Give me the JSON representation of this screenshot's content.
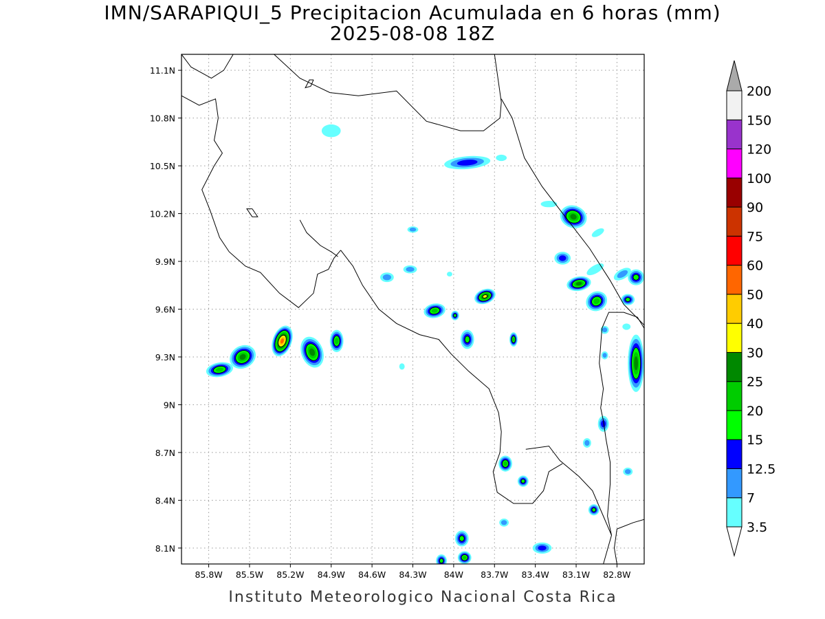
{
  "title": {
    "line1": "IMN/SARAPIQUI_5 Precipitacion Acumulada en 6 horas (mm)",
    "line2": "2025-08-08 18Z"
  },
  "footer": "Instituto Meteorologico Nacional Costa Rica",
  "axes": {
    "lon_range": [
      -86.0,
      -82.6
    ],
    "lat_range": [
      8.0,
      11.2
    ],
    "lon_ticks": [
      {
        "v": -85.8,
        "label": "85.8W"
      },
      {
        "v": -85.5,
        "label": "85.5W"
      },
      {
        "v": -85.2,
        "label": "85.2W"
      },
      {
        "v": -84.9,
        "label": "84.9W"
      },
      {
        "v": -84.6,
        "label": "84.6W"
      },
      {
        "v": -84.3,
        "label": "84.3W"
      },
      {
        "v": -84.0,
        "label": "84W"
      },
      {
        "v": -83.7,
        "label": "83.7W"
      },
      {
        "v": -83.4,
        "label": "83.4W"
      },
      {
        "v": -83.1,
        "label": "83.1W"
      },
      {
        "v": -82.8,
        "label": "82.8W"
      }
    ],
    "lat_ticks": [
      {
        "v": 11.1,
        "label": "11.1N"
      },
      {
        "v": 10.8,
        "label": "10.8N"
      },
      {
        "v": 10.5,
        "label": "10.5N"
      },
      {
        "v": 10.2,
        "label": "10.2N"
      },
      {
        "v": 9.9,
        "label": "9.9N"
      },
      {
        "v": 9.6,
        "label": "9.6N"
      },
      {
        "v": 9.3,
        "label": "9.3N"
      },
      {
        "v": 9.0,
        "label": "9N"
      },
      {
        "v": 8.7,
        "label": "8.7N"
      },
      {
        "v": 8.4,
        "label": "8.4N"
      },
      {
        "v": 8.1,
        "label": "8.1N"
      }
    ],
    "grid": true
  },
  "colorbar": {
    "labels": [
      "3.5",
      "7",
      "12.5",
      "15",
      "20",
      "25",
      "30",
      "40",
      "50",
      "60",
      "75",
      "90",
      "100",
      "120",
      "150",
      "200"
    ],
    "colors": [
      "#66ffff",
      "#3399ff",
      "#0000ff",
      "#00ff00",
      "#00cc00",
      "#008800",
      "#ffff00",
      "#ffcc00",
      "#ff6600",
      "#ff0000",
      "#cc3300",
      "#990000",
      "#ff00ff",
      "#9933cc",
      "#f2f2f2"
    ],
    "over_color": "#aaaaaa",
    "under_color": "#ffffff"
  },
  "precip_cells": [
    {
      "lon": -85.72,
      "lat": 9.22,
      "rx": 0.1,
      "ry": 0.045,
      "level": 4,
      "rot": -10
    },
    {
      "lon": -85.55,
      "lat": 9.3,
      "rx": 0.1,
      "ry": 0.07,
      "level": 5,
      "rot": -30
    },
    {
      "lon": -85.26,
      "lat": 9.4,
      "rx": 0.07,
      "ry": 0.1,
      "level": 8,
      "rot": 20
    },
    {
      "lon": -85.04,
      "lat": 9.33,
      "rx": 0.08,
      "ry": 0.1,
      "level": 5,
      "rot": -20
    },
    {
      "lon": -84.86,
      "lat": 9.4,
      "rx": 0.05,
      "ry": 0.07,
      "level": 4,
      "rot": 0
    },
    {
      "lon": -84.9,
      "lat": 10.72,
      "rx": 0.07,
      "ry": 0.04,
      "level": 0,
      "rot": 0
    },
    {
      "lon": -83.9,
      "lat": 10.52,
      "rx": 0.17,
      "ry": 0.04,
      "level": 2,
      "rot": -5
    },
    {
      "lon": -83.12,
      "lat": 10.18,
      "rx": 0.1,
      "ry": 0.07,
      "level": 5,
      "rot": 20
    },
    {
      "lon": -83.2,
      "lat": 9.92,
      "rx": 0.06,
      "ry": 0.04,
      "level": 2,
      "rot": 0
    },
    {
      "lon": -83.08,
      "lat": 9.76,
      "rx": 0.09,
      "ry": 0.045,
      "level": 5,
      "rot": -10
    },
    {
      "lon": -82.95,
      "lat": 9.65,
      "rx": 0.08,
      "ry": 0.06,
      "level": 4,
      "rot": -30
    },
    {
      "lon": -82.72,
      "lat": 9.66,
      "rx": 0.05,
      "ry": 0.035,
      "level": 3,
      "rot": 0
    },
    {
      "lon": -83.77,
      "lat": 9.68,
      "rx": 0.08,
      "ry": 0.045,
      "level": 6,
      "rot": -20
    },
    {
      "lon": -84.14,
      "lat": 9.59,
      "rx": 0.08,
      "ry": 0.045,
      "level": 4,
      "rot": -10
    },
    {
      "lon": -83.99,
      "lat": 9.56,
      "rx": 0.03,
      "ry": 0.03,
      "level": 3,
      "rot": 0
    },
    {
      "lon": -83.9,
      "lat": 9.41,
      "rx": 0.05,
      "ry": 0.06,
      "level": 3,
      "rot": 0
    },
    {
      "lon": -83.56,
      "lat": 9.41,
      "rx": 0.03,
      "ry": 0.045,
      "level": 4,
      "rot": 0
    },
    {
      "lon": -84.32,
      "lat": 9.85,
      "rx": 0.05,
      "ry": 0.025,
      "level": 1,
      "rot": 0
    },
    {
      "lon": -84.49,
      "lat": 9.8,
      "rx": 0.05,
      "ry": 0.03,
      "level": 1,
      "rot": 0
    },
    {
      "lon": -84.3,
      "lat": 10.1,
      "rx": 0.04,
      "ry": 0.02,
      "level": 1,
      "rot": 0
    },
    {
      "lon": -82.66,
      "lat": 9.26,
      "rx": 0.06,
      "ry": 0.18,
      "level": 5,
      "rot": 0
    },
    {
      "lon": -82.9,
      "lat": 8.88,
      "rx": 0.04,
      "ry": 0.05,
      "level": 2,
      "rot": 0
    },
    {
      "lon": -83.62,
      "lat": 8.63,
      "rx": 0.05,
      "ry": 0.05,
      "level": 4,
      "rot": 0
    },
    {
      "lon": -83.49,
      "lat": 8.52,
      "rx": 0.04,
      "ry": 0.035,
      "level": 3,
      "rot": 0
    },
    {
      "lon": -83.35,
      "lat": 8.1,
      "rx": 0.07,
      "ry": 0.035,
      "level": 2,
      "rot": 0
    },
    {
      "lon": -83.94,
      "lat": 8.16,
      "rx": 0.05,
      "ry": 0.05,
      "level": 3,
      "rot": 0
    },
    {
      "lon": -83.92,
      "lat": 8.04,
      "rx": 0.05,
      "ry": 0.04,
      "level": 4,
      "rot": 0
    },
    {
      "lon": -84.09,
      "lat": 8.02,
      "rx": 0.04,
      "ry": 0.04,
      "level": 3,
      "rot": 0
    },
    {
      "lon": -82.97,
      "lat": 8.34,
      "rx": 0.04,
      "ry": 0.035,
      "level": 3,
      "rot": 0
    },
    {
      "lon": -82.66,
      "lat": 9.8,
      "rx": 0.06,
      "ry": 0.05,
      "level": 3,
      "rot": 0
    },
    {
      "lon": -82.76,
      "lat": 9.82,
      "rx": 0.07,
      "ry": 0.03,
      "level": 1,
      "rot": -30
    },
    {
      "lon": -82.96,
      "lat": 9.85,
      "rx": 0.07,
      "ry": 0.025,
      "level": 0,
      "rot": -30
    },
    {
      "lon": -82.94,
      "lat": 10.08,
      "rx": 0.05,
      "ry": 0.02,
      "level": 0,
      "rot": -30
    },
    {
      "lon": -83.3,
      "lat": 10.26,
      "rx": 0.06,
      "ry": 0.02,
      "level": 0,
      "rot": 0
    },
    {
      "lon": -83.65,
      "lat": 10.55,
      "rx": 0.04,
      "ry": 0.02,
      "level": 0,
      "rot": 0
    },
    {
      "lon": -83.63,
      "lat": 8.26,
      "rx": 0.035,
      "ry": 0.025,
      "level": 1,
      "rot": 0
    },
    {
      "lon": -82.72,
      "lat": 8.58,
      "rx": 0.035,
      "ry": 0.025,
      "level": 1,
      "rot": 0
    },
    {
      "lon": -83.02,
      "lat": 8.76,
      "rx": 0.03,
      "ry": 0.03,
      "level": 1,
      "rot": 0
    },
    {
      "lon": -82.89,
      "lat": 9.47,
      "rx": 0.03,
      "ry": 0.025,
      "level": 1,
      "rot": 0
    },
    {
      "lon": -82.89,
      "lat": 9.31,
      "rx": 0.025,
      "ry": 0.025,
      "level": 1,
      "rot": 0
    },
    {
      "lon": -84.38,
      "lat": 9.24,
      "rx": 0.02,
      "ry": 0.02,
      "level": 0,
      "rot": 0
    },
    {
      "lon": -84.03,
      "lat": 9.82,
      "rx": 0.02,
      "ry": 0.015,
      "level": 0,
      "rot": 0
    },
    {
      "lon": -82.73,
      "lat": 9.49,
      "rx": 0.03,
      "ry": 0.02,
      "level": 0,
      "rot": 0
    }
  ],
  "coastlines": [
    [
      [
        -86.0,
        10.94
      ],
      [
        -85.87,
        10.88
      ],
      [
        -85.75,
        10.92
      ],
      [
        -85.73,
        10.8
      ],
      [
        -85.76,
        10.66
      ],
      [
        -85.7,
        10.58
      ],
      [
        -85.76,
        10.5
      ],
      [
        -85.85,
        10.35
      ],
      [
        -85.79,
        10.22
      ],
      [
        -85.72,
        10.05
      ],
      [
        -85.65,
        9.96
      ],
      [
        -85.53,
        9.87
      ],
      [
        -85.42,
        9.83
      ],
      [
        -85.28,
        9.7
      ],
      [
        -85.14,
        9.61
      ],
      [
        -85.03,
        9.7
      ],
      [
        -85.0,
        9.82
      ],
      [
        -84.92,
        9.85
      ],
      [
        -84.88,
        9.92
      ],
      [
        -84.83,
        9.97
      ]
    ],
    [
      [
        -84.83,
        9.97
      ],
      [
        -84.74,
        9.87
      ],
      [
        -84.67,
        9.75
      ],
      [
        -84.55,
        9.6
      ],
      [
        -84.42,
        9.51
      ],
      [
        -84.25,
        9.44
      ],
      [
        -84.11,
        9.41
      ],
      [
        -84.02,
        9.32
      ],
      [
        -83.89,
        9.21
      ],
      [
        -83.74,
        9.1
      ],
      [
        -83.67,
        8.95
      ],
      [
        -83.65,
        8.83
      ],
      [
        -83.66,
        8.7
      ],
      [
        -83.71,
        8.58
      ],
      [
        -83.68,
        8.45
      ],
      [
        -83.56,
        8.38
      ],
      [
        -83.42,
        8.38
      ],
      [
        -83.34,
        8.46
      ],
      [
        -83.3,
        8.58
      ],
      [
        -83.2,
        8.63
      ]
    ],
    [
      [
        -83.47,
        8.72
      ],
      [
        -83.3,
        8.74
      ],
      [
        -83.22,
        8.65
      ],
      [
        -83.08,
        8.55
      ],
      [
        -82.98,
        8.46
      ],
      [
        -82.9,
        8.3
      ],
      [
        -82.84,
        8.18
      ],
      [
        -82.9,
        8.0
      ]
    ],
    [
      [
        -82.8,
        8.0
      ],
      [
        -82.82,
        8.1
      ],
      [
        -82.8,
        8.22
      ],
      [
        -82.68,
        8.26
      ],
      [
        -82.6,
        8.28
      ]
    ],
    [
      [
        -85.13,
        10.16
      ],
      [
        -85.08,
        10.08
      ],
      [
        -84.98,
        10.0
      ],
      [
        -84.9,
        9.96
      ],
      [
        -84.85,
        9.93
      ]
    ],
    [
      [
        -86.0,
        11.2
      ],
      [
        -85.93,
        11.12
      ],
      [
        -85.78,
        11.05
      ],
      [
        -85.69,
        11.1
      ],
      [
        -85.62,
        11.2
      ]
    ],
    [
      [
        -85.32,
        11.2
      ],
      [
        -85.13,
        11.05
      ],
      [
        -84.91,
        10.96
      ],
      [
        -84.7,
        10.94
      ],
      [
        -84.42,
        10.97
      ],
      [
        -84.2,
        10.78
      ],
      [
        -83.95,
        10.72
      ],
      [
        -83.78,
        10.72
      ],
      [
        -83.66,
        10.8
      ],
      [
        -83.65,
        10.9
      ],
      [
        -83.7,
        11.2
      ]
    ],
    [
      [
        -83.65,
        10.92
      ],
      [
        -83.57,
        10.8
      ],
      [
        -83.48,
        10.55
      ],
      [
        -83.35,
        10.37
      ],
      [
        -83.18,
        10.18
      ],
      [
        -83.0,
        9.98
      ],
      [
        -82.85,
        9.78
      ],
      [
        -82.75,
        9.63
      ],
      [
        -82.6,
        9.5
      ]
    ],
    [
      [
        -82.6,
        9.48
      ],
      [
        -82.65,
        9.55
      ],
      [
        -82.75,
        9.58
      ],
      [
        -82.86,
        9.58
      ],
      [
        -82.91,
        9.48
      ],
      [
        -82.93,
        9.26
      ],
      [
        -82.9,
        9.1
      ],
      [
        -82.92,
        8.98
      ],
      [
        -82.9,
        8.9
      ],
      [
        -82.88,
        8.78
      ],
      [
        -82.85,
        8.64
      ],
      [
        -82.85,
        8.5
      ],
      [
        -82.87,
        8.3
      ],
      [
        -82.84,
        8.18
      ]
    ],
    [
      [
        -85.48,
        10.23
      ],
      [
        -85.52,
        10.23
      ],
      [
        -85.48,
        10.18
      ],
      [
        -85.44,
        10.18
      ],
      [
        -85.48,
        10.23
      ]
    ],
    [
      [
        -85.03,
        11.04
      ],
      [
        -85.05,
        11.0
      ],
      [
        -85.09,
        10.99
      ],
      [
        -85.06,
        11.04
      ],
      [
        -85.03,
        11.04
      ]
    ]
  ]
}
